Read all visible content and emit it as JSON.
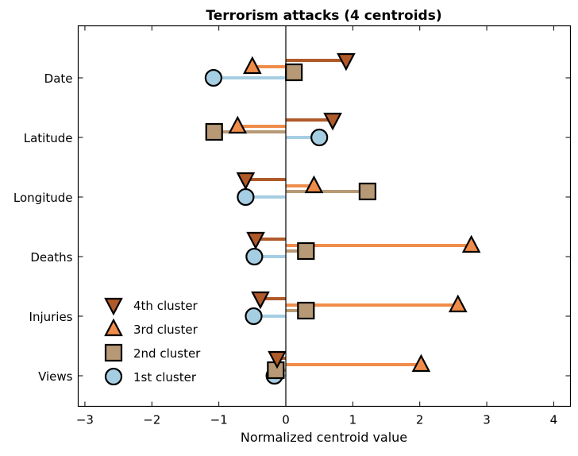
{
  "chart_data": {
    "type": "scatter",
    "title": "Terrorism attacks (4 centroids)",
    "xlabel": "Normalized centroid value",
    "ylabel": "",
    "xlim": [
      -3.1,
      4.25
    ],
    "xticks": [
      -3,
      -2,
      -1,
      0,
      1,
      2,
      3,
      4
    ],
    "categories": [
      "Date",
      "Latitude",
      "Longitude",
      "Deaths",
      "Injuries",
      "Views"
    ],
    "legend_position": "bottom-left",
    "grid": false,
    "series": [
      {
        "name": "4th cluster",
        "marker": "triangle-down",
        "color": "#b05a2a",
        "values": [
          0.9,
          0.7,
          -0.6,
          -0.45,
          -0.38,
          -0.13
        ]
      },
      {
        "name": "3rd cluster",
        "marker": "triangle-up",
        "color": "#ef8c4a",
        "values": [
          -0.5,
          -0.72,
          0.42,
          2.77,
          2.57,
          2.02
        ]
      },
      {
        "name": "2nd cluster",
        "marker": "square",
        "color": "#b79a75",
        "values": [
          0.12,
          -1.07,
          1.22,
          0.3,
          0.3,
          -0.15
        ]
      },
      {
        "name": "1st cluster",
        "marker": "circle",
        "color": "#a6cee3",
        "values": [
          -1.08,
          0.5,
          -0.6,
          -0.47,
          -0.48,
          -0.17
        ]
      }
    ]
  }
}
